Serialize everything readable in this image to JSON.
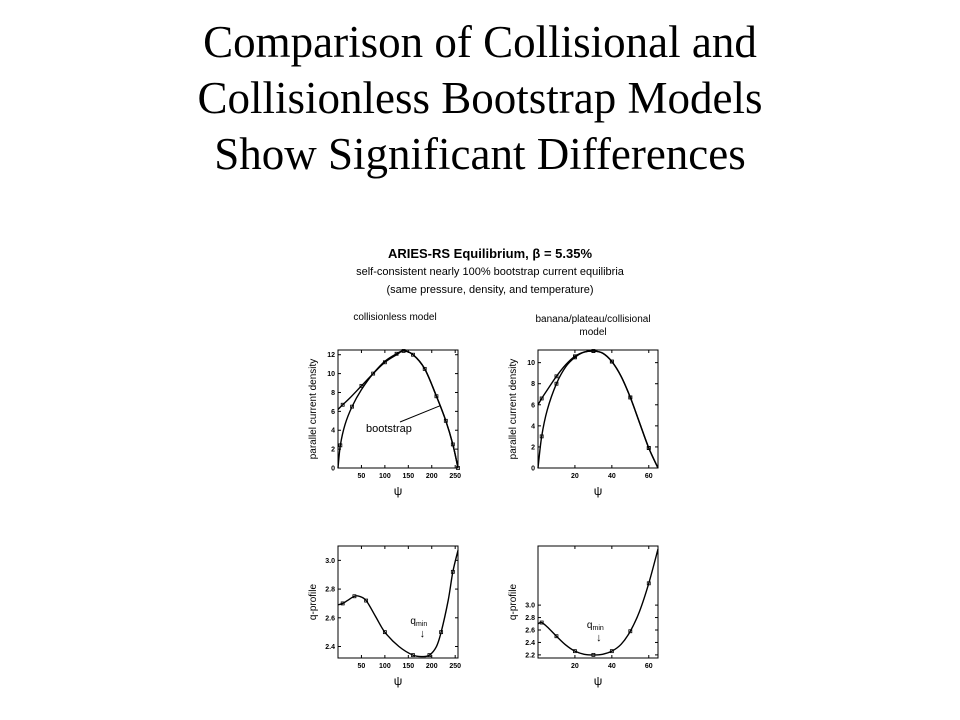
{
  "slide": {
    "title_lines": [
      "Comparison of Collisional and",
      "Collisionless Bootstrap Models",
      "Show Significant Differences"
    ]
  },
  "figure": {
    "title": "ARIES-RS Equilibrium, β = 5.35%",
    "subtitle1": "self-consistent nearly 100% bootstrap current equilibria",
    "subtitle2": "(same pressure, density, and temperature)",
    "left_label": "collisionless model",
    "right_label_line1": "banana/plateau/collisional",
    "right_label_line2": "model"
  },
  "chart_data": [
    {
      "id": "tl",
      "type": "line",
      "title": "collisionless model",
      "xlabel": "ψ",
      "ylabel": "parallel current density",
      "xlim": [
        0,
        256
      ],
      "ylim": [
        0,
        12.5
      ],
      "xticks": [
        50,
        100,
        150,
        200,
        250
      ],
      "xtick_labels": [
        "50",
        "100",
        "150",
        "200",
        "250"
      ],
      "yticks": [
        0,
        2,
        4,
        6,
        8,
        10,
        12
      ],
      "ytick_labels": [
        "0",
        "2",
        "4",
        "6",
        "8",
        "10",
        "12"
      ],
      "annotation": "bootstrap",
      "series": [
        {
          "kind": "total",
          "x": [
            0,
            10,
            25,
            50,
            75,
            100,
            125,
            140,
            160,
            185,
            210,
            230,
            245,
            256
          ],
          "y": [
            6.2,
            6.7,
            7.4,
            8.7,
            10.0,
            11.2,
            12.0,
            12.4,
            12.0,
            10.5,
            7.6,
            5.0,
            2.5,
            0
          ]
        },
        {
          "kind": "bootstrap",
          "x": [
            0,
            5,
            15,
            30,
            50,
            75,
            100,
            125,
            140,
            160,
            185,
            210,
            230,
            245,
            256
          ],
          "y": [
            0,
            2.4,
            4.6,
            6.5,
            8.3,
            10.0,
            11.3,
            12.1,
            12.4,
            12.0,
            10.5,
            7.6,
            5.0,
            2.5,
            0
          ]
        }
      ]
    },
    {
      "id": "tr",
      "type": "line",
      "xlabel": "ψ",
      "ylabel": "parallel current density",
      "xlim": [
        0,
        65
      ],
      "ylim": [
        0,
        11.2
      ],
      "xticks": [
        20,
        40,
        60
      ],
      "xtick_labels": [
        "20",
        "40",
        "60"
      ],
      "yticks": [
        0,
        2,
        4,
        6,
        8,
        10
      ],
      "ytick_labels": [
        "0",
        "2",
        "4",
        "6",
        "8",
        "10"
      ],
      "series": [
        {
          "kind": "total",
          "x": [
            0,
            2,
            5,
            10,
            15,
            20,
            25,
            30,
            35,
            40,
            45,
            50,
            55,
            60,
            65
          ],
          "y": [
            6.0,
            6.6,
            7.4,
            8.7,
            9.8,
            10.6,
            11.0,
            11.1,
            10.9,
            10.1,
            8.7,
            6.7,
            4.3,
            1.9,
            0
          ]
        },
        {
          "kind": "bootstrap",
          "x": [
            0,
            2,
            5,
            10,
            15,
            20,
            25,
            30,
            35,
            40,
            45,
            50,
            55,
            60,
            65
          ],
          "y": [
            0,
            3.0,
            5.5,
            8.0,
            9.6,
            10.5,
            11.0,
            11.1,
            10.9,
            10.1,
            8.7,
            6.7,
            4.3,
            1.9,
            0
          ]
        }
      ]
    },
    {
      "id": "bl",
      "type": "line",
      "xlabel": "ψ",
      "ylabel": "q-profile",
      "xlim": [
        0,
        256
      ],
      "ylim": [
        2.32,
        3.1
      ],
      "xticks": [
        50,
        100,
        150,
        200,
        250
      ],
      "xtick_labels": [
        "50",
        "100",
        "150",
        "200",
        "250"
      ],
      "yticks": [
        2.4,
        2.6,
        2.8,
        3.0
      ],
      "ytick_labels": [
        "2.4",
        "2.6",
        "2.8",
        "3.0"
      ],
      "annotation": "q",
      "annotation_sub": "min",
      "annotation_arrow": "↓",
      "series": [
        {
          "kind": "q",
          "x": [
            0,
            10,
            20,
            35,
            45,
            60,
            80,
            100,
            130,
            160,
            180,
            195,
            210,
            220,
            235,
            245,
            256
          ],
          "y": [
            2.69,
            2.7,
            2.72,
            2.75,
            2.75,
            2.72,
            2.61,
            2.5,
            2.4,
            2.34,
            2.33,
            2.34,
            2.4,
            2.5,
            2.72,
            2.92,
            3.07
          ]
        }
      ]
    },
    {
      "id": "br",
      "type": "line",
      "xlabel": "ψ",
      "ylabel": "q-profile",
      "xlim": [
        0,
        65
      ],
      "ylim": [
        2.15,
        3.95
      ],
      "xticks": [
        20,
        40,
        60
      ],
      "xtick_labels": [
        "20",
        "40",
        "60"
      ],
      "yticks": [
        2.2,
        2.4,
        2.6,
        2.8,
        3.0
      ],
      "ytick_labels": [
        "2.2",
        "2.4",
        "2.6",
        "2.8",
        "3.0"
      ],
      "annotation": "q",
      "annotation_sub": "min",
      "annotation_arrow": "↓",
      "series": [
        {
          "kind": "q",
          "x": [
            0,
            2,
            5,
            10,
            15,
            20,
            25,
            30,
            35,
            40,
            45,
            50,
            55,
            60,
            65
          ],
          "y": [
            2.7,
            2.72,
            2.65,
            2.5,
            2.36,
            2.26,
            2.21,
            2.2,
            2.21,
            2.26,
            2.37,
            2.58,
            2.9,
            3.35,
            3.9
          ]
        }
      ]
    }
  ]
}
